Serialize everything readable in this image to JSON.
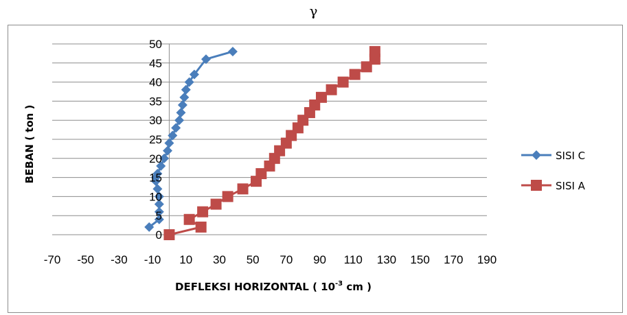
{
  "page_symbol": "γ",
  "chart_data": {
    "type": "line",
    "title": "",
    "xlabel": "DEFLEKSI HORIZONTAL ( 10",
    "xlabel_sup": "-3",
    "xlabel_tail": " cm )",
    "ylabel": "BEBAN ( ton )",
    "xlim": [
      -70,
      190
    ],
    "ylim": [
      0,
      50
    ],
    "x_ticks": [
      -70,
      -50,
      -30,
      -10,
      10,
      30,
      50,
      70,
      90,
      110,
      130,
      150,
      170,
      190
    ],
    "x_tick_labels": [
      "-70",
      "-50",
      "-30",
      "-10",
      "10",
      "30",
      "50",
      "70",
      "90",
      "110",
      "130",
      "150",
      "170",
      "190"
    ],
    "y_ticks": [
      0,
      5,
      10,
      15,
      20,
      25,
      30,
      35,
      40,
      45,
      50
    ],
    "y_tick_labels": [
      "0",
      "5",
      "10",
      "15",
      "20",
      "25",
      "30",
      "35",
      "40",
      "45",
      "50"
    ],
    "grid": true,
    "legend_position": "right",
    "series": [
      {
        "name": "SISI C",
        "color": "#4a7ebb",
        "marker": "diamond",
        "x": [
          -12,
          -6,
          -6,
          -6,
          -6,
          -7,
          -8,
          -8,
          -7,
          -5,
          -3,
          -1,
          0,
          2,
          4,
          6,
          7,
          8,
          9,
          10,
          12,
          15,
          22,
          38
        ],
        "y": [
          2,
          4,
          6,
          8,
          10,
          12,
          14,
          15,
          16,
          18,
          20,
          22,
          24,
          26,
          28,
          30,
          32,
          34,
          36,
          38,
          40,
          42,
          46,
          48
        ]
      },
      {
        "name": "SISI A",
        "color": "#be4b48",
        "marker": "square",
        "x": [
          0,
          19,
          12,
          20,
          28,
          35,
          44,
          52,
          55,
          60,
          63,
          66,
          70,
          73,
          77,
          80,
          84,
          87,
          91,
          97,
          104,
          111,
          118,
          123,
          123
        ],
        "y": [
          0,
          2,
          4,
          6,
          8,
          10,
          12,
          14,
          16,
          18,
          20,
          22,
          24,
          26,
          28,
          30,
          32,
          34,
          36,
          38,
          40,
          42,
          44,
          46,
          48
        ]
      }
    ]
  }
}
